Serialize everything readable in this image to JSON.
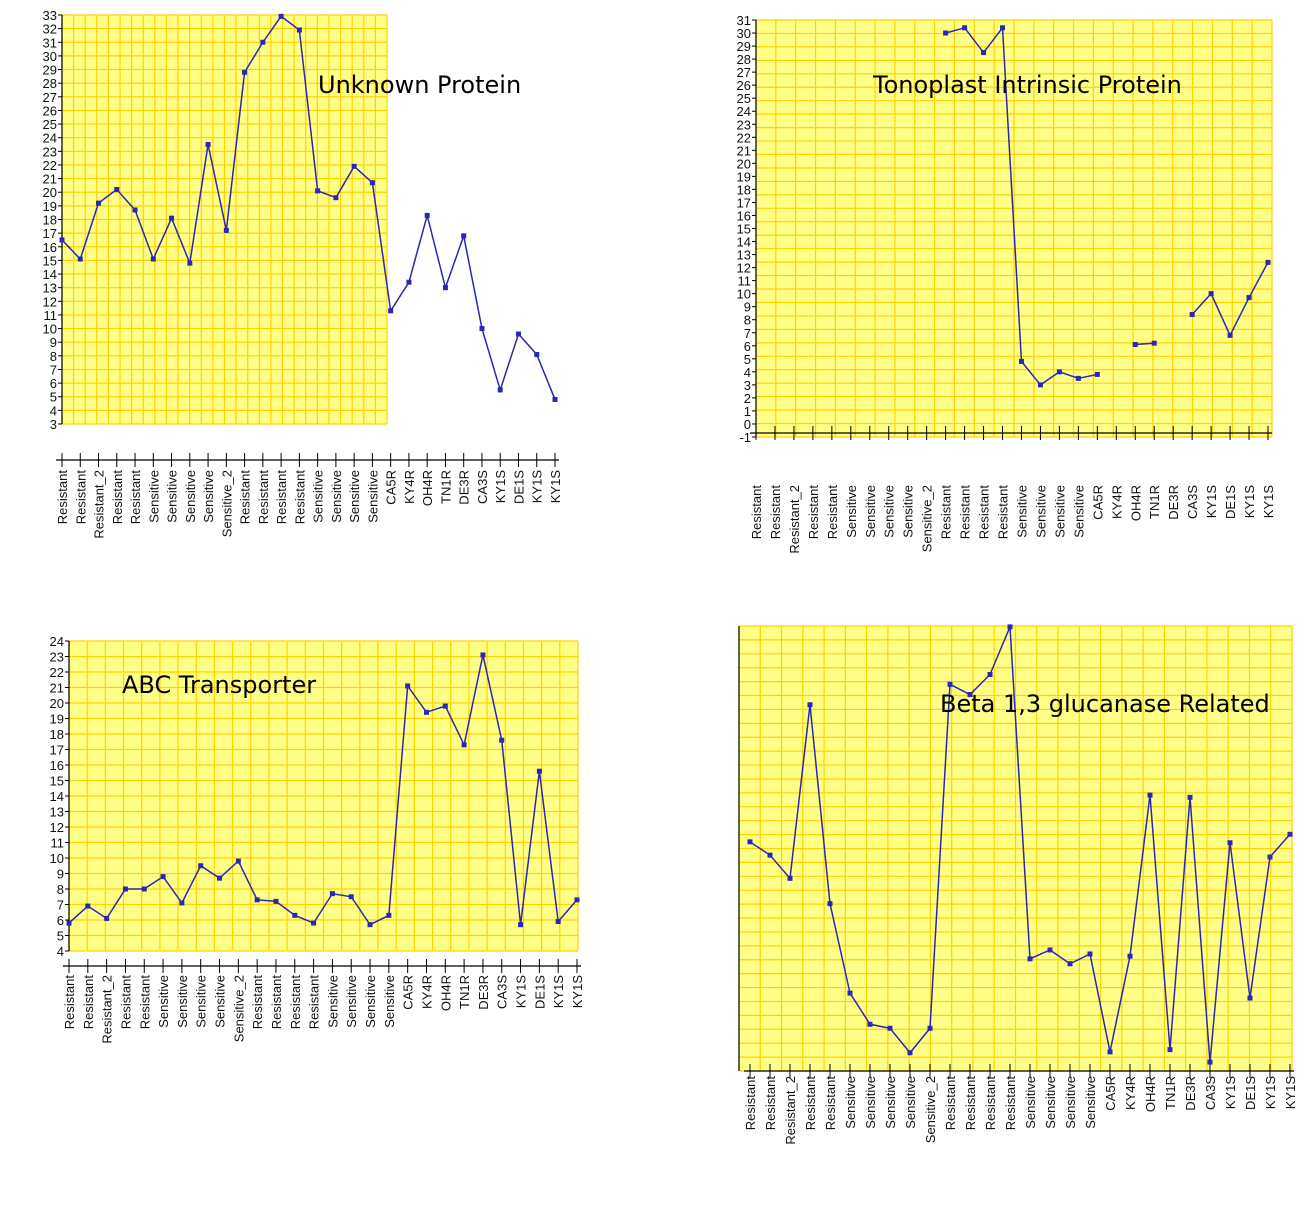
{
  "chart_data": [
    {
      "type": "line",
      "title": "Unknown Protein",
      "ylim": [
        3,
        33
      ],
      "yticks": [
        "3",
        "4",
        "5",
        "6",
        "7",
        "8",
        "9",
        "10",
        "11",
        "12",
        "13",
        "14",
        "15",
        "16",
        "17",
        "18",
        "19",
        "20",
        "21",
        "22",
        "23",
        "24",
        "25",
        "26",
        "27",
        "28",
        "29",
        "30",
        "31",
        "32",
        "33"
      ],
      "categories": [
        "Resistant",
        "Resistant",
        "Resistant_2",
        "Resistant",
        "Resistant",
        "Sensitive",
        "Sensitive",
        "Sensitive",
        "Sensitive",
        "Sensitive_2",
        "Resistant",
        "Resistant",
        "Resistant",
        "Resistant",
        "Sensitive",
        "Sensitive",
        "Sensitive",
        "Sensitive",
        "CA5R",
        "KY4R",
        "OH4R",
        "TN1R",
        "DE3R",
        "CA3S",
        "KY1S",
        "DE1S",
        "KY1S",
        "KY1S"
      ],
      "values": [
        16.5,
        15.1,
        19.2,
        20.2,
        18.7,
        15.1,
        18.1,
        14.8,
        23.5,
        17.2,
        28.8,
        31.0,
        32.9,
        31.9,
        20.1,
        19.6,
        21.9,
        20.7,
        11.3,
        13.4,
        18.3,
        13.0,
        16.8,
        10.0,
        5.5,
        9.6,
        8.1,
        4.8
      ],
      "grid": true
    },
    {
      "type": "line",
      "title": "Tonoplast Intrinsic Protein",
      "ylim": [
        -1,
        31
      ],
      "yticks": [
        "-1",
        "0",
        "1",
        "2",
        "3",
        "4",
        "5",
        "6",
        "7",
        "8",
        "9",
        "10",
        "11",
        "12",
        "13",
        "14",
        "15",
        "16",
        "17",
        "18",
        "19",
        "20",
        "21",
        "22",
        "23",
        "24",
        "25",
        "26",
        "27",
        "28",
        "29",
        "30",
        "31"
      ],
      "categories": [
        "Resistant",
        "Resistant",
        "Resistant_2",
        "Resistant",
        "Resistant",
        "Sensitive",
        "Sensitive",
        "Sensitive",
        "Sensitive",
        "Sensitive_2",
        "Resistant",
        "Resistant",
        "Resistant",
        "Resistant",
        "Sensitive",
        "Sensitive",
        "Sensitive",
        "Sensitive",
        "CA5R",
        "KY4R",
        "OH4R",
        "TN1R",
        "DE3R",
        "CA3S",
        "KY1S",
        "DE1S",
        "KY1S",
        "KY1S"
      ],
      "values": [
        null,
        null,
        null,
        null,
        null,
        null,
        null,
        null,
        null,
        null,
        30.0,
        30.4,
        28.5,
        30.4,
        4.8,
        3.0,
        4.0,
        3.5,
        3.8,
        null,
        6.1,
        6.2,
        null,
        8.4,
        10.0,
        6.8,
        9.7,
        12.4
      ],
      "grid": true
    },
    {
      "type": "line",
      "title": "ABC Transporter",
      "ylim": [
        4,
        24
      ],
      "yticks": [
        "4",
        "5",
        "6",
        "7",
        "8",
        "9",
        "10",
        "11",
        "12",
        "13",
        "14",
        "15",
        "16",
        "17",
        "18",
        "19",
        "20",
        "21",
        "22",
        "23",
        "24"
      ],
      "categories": [
        "Resistant",
        "Resistant",
        "Resistant_2",
        "Resistant",
        "Resistant",
        "Sensitive",
        "Sensitive",
        "Sensitive",
        "Sensitive",
        "Sensitive_2",
        "Resistant",
        "Resistant",
        "Resistant",
        "Resistant",
        "Sensitive",
        "Sensitive",
        "Sensitive",
        "Sensitive",
        "CA5R",
        "KY4R",
        "OH4R",
        "TN1R",
        "DE3R",
        "CA3S",
        "KY1S",
        "DE1S",
        "KY1S",
        "KY1S"
      ],
      "values": [
        5.8,
        6.9,
        6.1,
        8.0,
        8.0,
        8.8,
        7.1,
        9.5,
        8.7,
        9.8,
        7.3,
        7.2,
        6.3,
        5.8,
        7.7,
        7.5,
        5.7,
        6.3,
        21.1,
        19.4,
        19.8,
        17.3,
        23.1,
        17.6,
        5.7,
        15.6,
        5.9,
        7.3
      ],
      "grid": true
    },
    {
      "type": "line",
      "title": "Beta 1,3 glucanase Related",
      "ylim": [
        0,
        100
      ],
      "value_scale": "relative (tick labels illegible)",
      "categories": [
        "Resistant",
        "Resistant",
        "Resistant_2",
        "Resistant",
        "Resistant",
        "Sensitive",
        "Sensitive",
        "Sensitive",
        "Sensitive",
        "Sensitive_2",
        "Resistant",
        "Resistant",
        "Resistant",
        "Resistant",
        "Sensitive",
        "Sensitive",
        "Sensitive",
        "Sensitive",
        "CA5R",
        "KY4R",
        "OH4R",
        "TN1R",
        "DE3R",
        "CA3S",
        "KY1S",
        "DE1S",
        "KY1S",
        "KY1S"
      ],
      "values": [
        51.5,
        48.5,
        43.3,
        82.3,
        37.6,
        17.5,
        10.5,
        9.6,
        4.1,
        9.6,
        86.9,
        84.6,
        89.1,
        99.8,
        25.2,
        27.2,
        24.1,
        26.3,
        4.3,
        25.8,
        62.0,
        4.8,
        61.5,
        2.0,
        51.3,
        16.4,
        48.1,
        53.2
      ],
      "grid": true
    }
  ]
}
